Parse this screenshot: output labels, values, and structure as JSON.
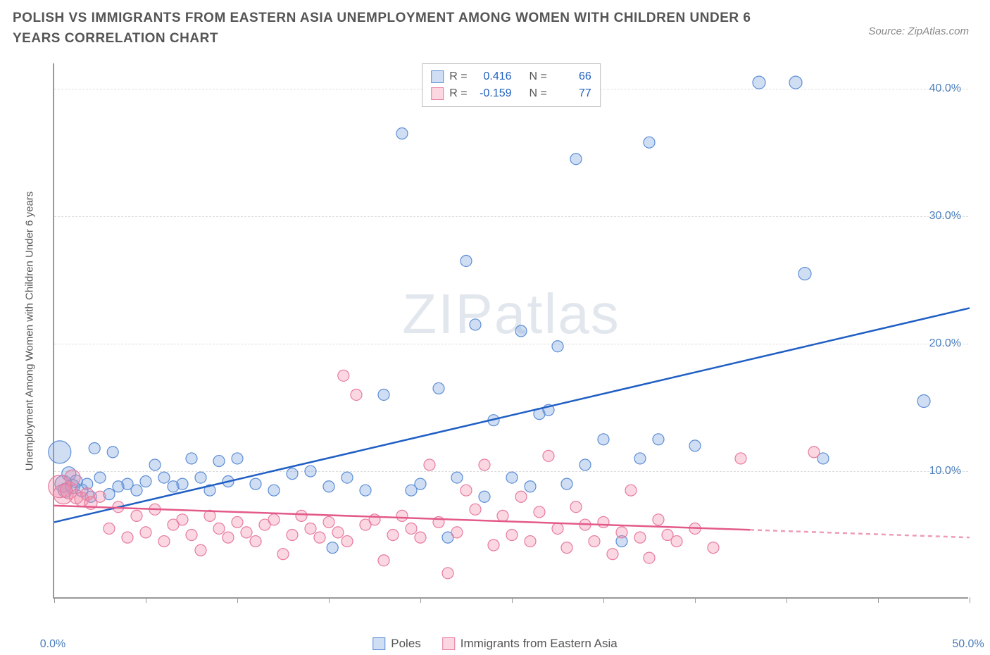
{
  "title": "POLISH VS IMMIGRANTS FROM EASTERN ASIA UNEMPLOYMENT AMONG WOMEN WITH CHILDREN UNDER 6 YEARS CORRELATION CHART",
  "source_prefix": "Source: ",
  "source_name": "ZipAtlas.com",
  "watermark": "ZIPatlas",
  "y_axis_title": "Unemployment Among Women with Children Under 6 years",
  "chart": {
    "type": "scatter",
    "xlim": [
      0,
      50
    ],
    "ylim": [
      0,
      42
    ],
    "x_ticks": [
      0,
      5,
      10,
      15,
      20,
      25,
      30,
      35,
      40,
      45,
      50
    ],
    "x_tick_labels": {
      "0": "0.0%",
      "50": "50.0%"
    },
    "y_ticks": [
      10,
      20,
      30,
      40
    ],
    "y_tick_labels": {
      "10": "10.0%",
      "20": "20.0%",
      "30": "30.0%",
      "40": "40.0%"
    },
    "grid_color": "#dddddd",
    "axis_color": "#999999",
    "background_color": "#ffffff",
    "series": [
      {
        "name": "Poles",
        "color_fill": "rgba(120,160,220,0.35)",
        "color_stroke": "#5b8dd6",
        "marker_r": 8,
        "R": "0.416",
        "N": "66",
        "trend": {
          "x1": 0,
          "y1": 6.0,
          "x2": 50,
          "y2": 22.8,
          "solid_until_x": 50,
          "stroke": "#1f5fc4",
          "width": 2.5
        },
        "points": [
          [
            0.3,
            11.5,
            16
          ],
          [
            0.5,
            9.0,
            12
          ],
          [
            0.6,
            8.5,
            10
          ],
          [
            0.8,
            9.8,
            10
          ],
          [
            1.0,
            8.8,
            10
          ],
          [
            1.2,
            9.2,
            9
          ],
          [
            1.5,
            8.5,
            9
          ],
          [
            1.8,
            9.0,
            8
          ],
          [
            2.0,
            8.0,
            8
          ],
          [
            2.2,
            11.8,
            8
          ],
          [
            2.5,
            9.5,
            8
          ],
          [
            3.0,
            8.2,
            8
          ],
          [
            3.2,
            11.5,
            8
          ],
          [
            3.5,
            8.8,
            8
          ],
          [
            4.0,
            9.0,
            8
          ],
          [
            4.5,
            8.5,
            8
          ],
          [
            5.0,
            9.2,
            8
          ],
          [
            5.5,
            10.5,
            8
          ],
          [
            6.0,
            9.5,
            8
          ],
          [
            6.5,
            8.8,
            8
          ],
          [
            7.0,
            9.0,
            8
          ],
          [
            7.5,
            11.0,
            8
          ],
          [
            8.0,
            9.5,
            8
          ],
          [
            8.5,
            8.5,
            8
          ],
          [
            9.0,
            10.8,
            8
          ],
          [
            9.5,
            9.2,
            8
          ],
          [
            10.0,
            11.0,
            8
          ],
          [
            11.0,
            9.0,
            8
          ],
          [
            12.0,
            8.5,
            8
          ],
          [
            13.0,
            9.8,
            8
          ],
          [
            14.0,
            10.0,
            8
          ],
          [
            15.0,
            8.8,
            8
          ],
          [
            15.2,
            4.0,
            8
          ],
          [
            16.0,
            9.5,
            8
          ],
          [
            17.0,
            8.5,
            8
          ],
          [
            18.0,
            16.0,
            8
          ],
          [
            19.0,
            36.5,
            8
          ],
          [
            19.5,
            8.5,
            8
          ],
          [
            20.0,
            9.0,
            8
          ],
          [
            21.0,
            16.5,
            8
          ],
          [
            21.5,
            4.8,
            8
          ],
          [
            22.0,
            9.5,
            8
          ],
          [
            22.5,
            26.5,
            8
          ],
          [
            23.0,
            21.5,
            8
          ],
          [
            23.5,
            8.0,
            8
          ],
          [
            24.0,
            14.0,
            8
          ],
          [
            25.0,
            9.5,
            8
          ],
          [
            25.5,
            21.0,
            8
          ],
          [
            26.0,
            8.8,
            8
          ],
          [
            26.5,
            14.5,
            8
          ],
          [
            27.0,
            14.8,
            8
          ],
          [
            27.5,
            19.8,
            8
          ],
          [
            28.0,
            9.0,
            8
          ],
          [
            28.5,
            34.5,
            8
          ],
          [
            29.0,
            10.5,
            8
          ],
          [
            30.0,
            12.5,
            8
          ],
          [
            31.0,
            4.5,
            8
          ],
          [
            32.0,
            11.0,
            8
          ],
          [
            32.5,
            35.8,
            8
          ],
          [
            33.0,
            12.5,
            8
          ],
          [
            35.0,
            12.0,
            8
          ],
          [
            38.5,
            40.5,
            9
          ],
          [
            40.5,
            40.5,
            9
          ],
          [
            41.0,
            25.5,
            9
          ],
          [
            42.0,
            11.0,
            8
          ],
          [
            47.5,
            15.5,
            9
          ]
        ]
      },
      {
        "name": "Immigrants from Eastern Asia",
        "color_fill": "rgba(240,140,170,0.35)",
        "color_stroke": "#e77aa0",
        "marker_r": 8,
        "R": "-0.159",
        "N": "77",
        "trend": {
          "x1": 0,
          "y1": 7.3,
          "x2": 50,
          "y2": 4.8,
          "solid_until_x": 38,
          "stroke": "#e35a8a",
          "width": 2.5
        },
        "points": [
          [
            0.3,
            8.8,
            16
          ],
          [
            0.5,
            8.2,
            14
          ],
          [
            0.8,
            8.5,
            12
          ],
          [
            1.0,
            9.5,
            11
          ],
          [
            1.2,
            8.0,
            10
          ],
          [
            1.5,
            7.8,
            10
          ],
          [
            1.8,
            8.2,
            9
          ],
          [
            2.0,
            7.5,
            9
          ],
          [
            2.5,
            8.0,
            8
          ],
          [
            3.0,
            5.5,
            8
          ],
          [
            3.5,
            7.2,
            8
          ],
          [
            4.0,
            4.8,
            8
          ],
          [
            4.5,
            6.5,
            8
          ],
          [
            5.0,
            5.2,
            8
          ],
          [
            5.5,
            7.0,
            8
          ],
          [
            6.0,
            4.5,
            8
          ],
          [
            6.5,
            5.8,
            8
          ],
          [
            7.0,
            6.2,
            8
          ],
          [
            7.5,
            5.0,
            8
          ],
          [
            8.0,
            3.8,
            8
          ],
          [
            8.5,
            6.5,
            8
          ],
          [
            9.0,
            5.5,
            8
          ],
          [
            9.5,
            4.8,
            8
          ],
          [
            10.0,
            6.0,
            8
          ],
          [
            10.5,
            5.2,
            8
          ],
          [
            11.0,
            4.5,
            8
          ],
          [
            11.5,
            5.8,
            8
          ],
          [
            12.0,
            6.2,
            8
          ],
          [
            12.5,
            3.5,
            8
          ],
          [
            13.0,
            5.0,
            8
          ],
          [
            13.5,
            6.5,
            8
          ],
          [
            14.0,
            5.5,
            8
          ],
          [
            14.5,
            4.8,
            8
          ],
          [
            15.0,
            6.0,
            8
          ],
          [
            15.5,
            5.2,
            8
          ],
          [
            15.8,
            17.5,
            8
          ],
          [
            16.0,
            4.5,
            8
          ],
          [
            16.5,
            16.0,
            8
          ],
          [
            17.0,
            5.8,
            8
          ],
          [
            17.5,
            6.2,
            8
          ],
          [
            18.0,
            3.0,
            8
          ],
          [
            18.5,
            5.0,
            8
          ],
          [
            19.0,
            6.5,
            8
          ],
          [
            19.5,
            5.5,
            8
          ],
          [
            20.0,
            4.8,
            8
          ],
          [
            20.5,
            10.5,
            8
          ],
          [
            21.0,
            6.0,
            8
          ],
          [
            21.5,
            2.0,
            8
          ],
          [
            22.0,
            5.2,
            8
          ],
          [
            22.5,
            8.5,
            8
          ],
          [
            23.0,
            7.0,
            8
          ],
          [
            23.5,
            10.5,
            8
          ],
          [
            24.0,
            4.2,
            8
          ],
          [
            24.5,
            6.5,
            8
          ],
          [
            25.0,
            5.0,
            8
          ],
          [
            25.5,
            8.0,
            8
          ],
          [
            26.0,
            4.5,
            8
          ],
          [
            26.5,
            6.8,
            8
          ],
          [
            27.0,
            11.2,
            8
          ],
          [
            27.5,
            5.5,
            8
          ],
          [
            28.0,
            4.0,
            8
          ],
          [
            28.5,
            7.2,
            8
          ],
          [
            29.0,
            5.8,
            8
          ],
          [
            29.5,
            4.5,
            8
          ],
          [
            30.0,
            6.0,
            8
          ],
          [
            30.5,
            3.5,
            8
          ],
          [
            31.0,
            5.2,
            8
          ],
          [
            31.5,
            8.5,
            8
          ],
          [
            32.0,
            4.8,
            8
          ],
          [
            32.5,
            3.2,
            8
          ],
          [
            33.0,
            6.2,
            8
          ],
          [
            33.5,
            5.0,
            8
          ],
          [
            34.0,
            4.5,
            8
          ],
          [
            35.0,
            5.5,
            8
          ],
          [
            36.0,
            4.0,
            8
          ],
          [
            37.5,
            11.0,
            8
          ],
          [
            41.5,
            11.5,
            8
          ]
        ]
      }
    ]
  },
  "legend": {
    "series1": "Poles",
    "series2": "Immigrants from Eastern Asia"
  },
  "stats_labels": {
    "R": "R =",
    "N": "N ="
  }
}
